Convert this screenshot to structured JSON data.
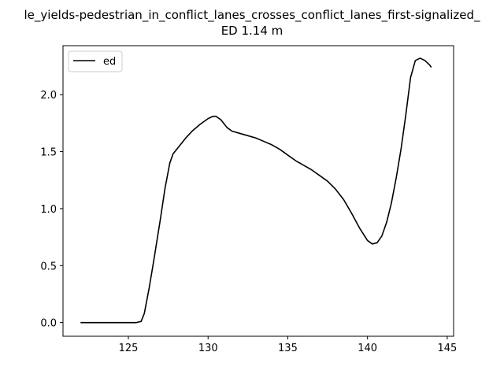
{
  "chart_data": {
    "type": "line",
    "title_line1": "le_yields-pedestrian_in_conflict_lanes_crosses_conflict_lanes_first-signalized_",
    "title_line2": "ED 1.14 m",
    "xlabel": "",
    "ylabel": "",
    "xlim": [
      120.9,
      145.4
    ],
    "ylim": [
      -0.12,
      2.43
    ],
    "xticks": [
      125,
      130,
      135,
      140,
      145
    ],
    "yticks": [
      0.0,
      0.5,
      1.0,
      1.5,
      2.0
    ],
    "xtick_labels": [
      "125",
      "130",
      "135",
      "140",
      "145"
    ],
    "ytick_labels": [
      "0.0",
      "0.5",
      "1.0",
      "1.5",
      "2.0"
    ],
    "grid": false,
    "legend_position": "upper-left",
    "series": [
      {
        "name": "ed",
        "color": "#000000",
        "x": [
          122.0,
          123.0,
          124.0,
          125.0,
          125.5,
          125.8,
          126.0,
          126.3,
          126.6,
          127.0,
          127.3,
          127.6,
          127.8,
          128.2,
          128.6,
          129.0,
          129.5,
          130.0,
          130.3,
          130.5,
          130.8,
          131.2,
          131.5,
          132.0,
          132.5,
          133.0,
          133.5,
          134.0,
          134.5,
          135.0,
          135.5,
          136.0,
          136.5,
          137.0,
          137.5,
          138.0,
          138.5,
          139.0,
          139.5,
          140.0,
          140.3,
          140.6,
          140.9,
          141.2,
          141.5,
          141.8,
          142.1,
          142.4,
          142.7,
          143.0,
          143.3,
          143.6,
          143.9,
          144.0
        ],
        "y": [
          0.0,
          0.0,
          0.0,
          0.0,
          0.0,
          0.01,
          0.08,
          0.3,
          0.55,
          0.9,
          1.18,
          1.4,
          1.48,
          1.55,
          1.62,
          1.68,
          1.74,
          1.79,
          1.81,
          1.81,
          1.78,
          1.71,
          1.68,
          1.66,
          1.64,
          1.62,
          1.59,
          1.56,
          1.52,
          1.47,
          1.42,
          1.38,
          1.34,
          1.29,
          1.24,
          1.17,
          1.08,
          0.96,
          0.83,
          0.72,
          0.69,
          0.7,
          0.76,
          0.88,
          1.05,
          1.27,
          1.52,
          1.82,
          2.15,
          2.3,
          2.32,
          2.3,
          2.26,
          2.24
        ]
      }
    ]
  }
}
